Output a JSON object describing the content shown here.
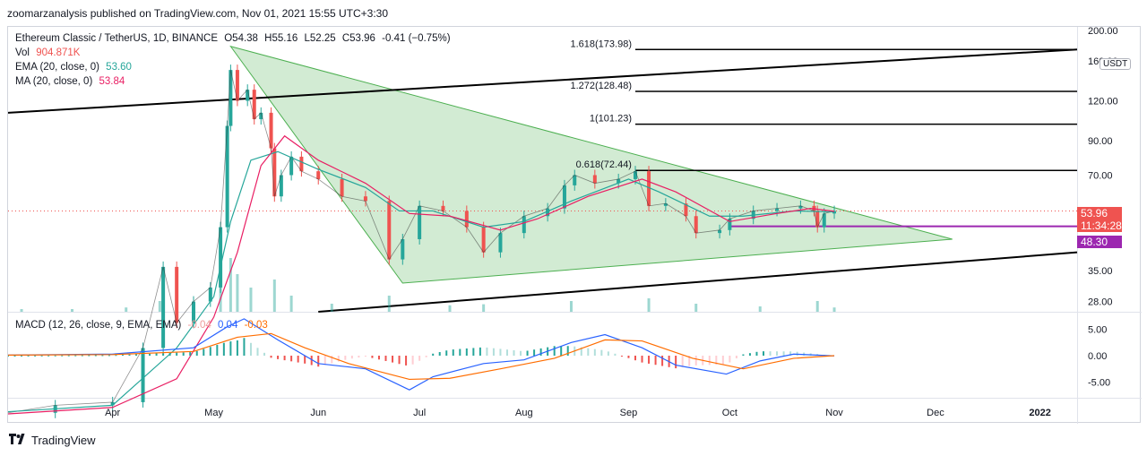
{
  "header": {
    "published": "zoomarzanalysis published on TradingView.com, Nov 01, 2021 15:55 UTC+3:30"
  },
  "legend": {
    "symbol": "Ethereum Classic / TetherUS, 1D, BINANCE",
    "ohlc": {
      "o": "O54.38",
      "h": "H55.16",
      "l": "L52.25",
      "c": "C53.96",
      "chg": "-0.41 (−0.75%)"
    },
    "vol": {
      "label": "Vol",
      "value": "904.871K"
    },
    "ema": {
      "label": "EMA (20, close, 0)",
      "value": "53.60"
    },
    "ma": {
      "label": "MA (20, close, 0)",
      "value": "53.84"
    },
    "macd": {
      "label": "MACD (12, 26, close, 9, EMA, EMA)",
      "v1": "-0.04",
      "v2": "0.04",
      "v3": "-0.03"
    }
  },
  "axis": {
    "currency": "USDT",
    "price_ticks": [
      "200.00",
      "160.00",
      "120.00",
      "90.00",
      "70.00",
      "35.00",
      "28.00"
    ],
    "macd_ticks": [
      "5.00",
      "0.00",
      "-5.00"
    ],
    "time_ticks": [
      "Apr",
      "May",
      "Jun",
      "Jul",
      "Aug",
      "Sep",
      "Oct",
      "Nov",
      "Dec",
      "2022"
    ]
  },
  "price_tags": {
    "last": "53.96",
    "countdown": "11:34:28",
    "level": "48.30"
  },
  "fib_levels": [
    {
      "label": "1.618(173.98)",
      "price": 173.98
    },
    {
      "label": "1.272(128.48)",
      "price": 128.48
    },
    {
      "label": "1(101.23)",
      "price": 101.23
    },
    {
      "label": "0.618(72.44)",
      "price": 72.44
    }
  ],
  "colors": {
    "up": "#26a69a",
    "down": "#ef5350",
    "ema": "#26a69a",
    "ma": "#e91e63",
    "macd": "#2962ff",
    "signal": "#ff6d00",
    "triangle": "#4caf50",
    "level": "#9c27b0",
    "last_tag": "#ef5350",
    "level_tag": "#9c27b0"
  },
  "footer": {
    "brand": "TradingView"
  },
  "chart_data": {
    "type": "candlestick",
    "title": "Ethereum Classic / TetherUS, 1D, BINANCE",
    "scale": "log",
    "ylim": [
      26,
      205
    ],
    "macd_ylim": [
      -8,
      8
    ],
    "x_range": [
      "2021-03-01",
      "2022-01-12"
    ],
    "x_ticks": [
      {
        "label": "Apr",
        "date": "2021-04-01"
      },
      {
        "label": "May",
        "date": "2021-05-01"
      },
      {
        "label": "Jun",
        "date": "2021-06-01"
      },
      {
        "label": "Jul",
        "date": "2021-07-01"
      },
      {
        "label": "Aug",
        "date": "2021-08-01"
      },
      {
        "label": "Sep",
        "date": "2021-09-01"
      },
      {
        "label": "Oct",
        "date": "2021-10-01"
      },
      {
        "label": "Nov",
        "date": "2021-11-01"
      },
      {
        "label": "Dec",
        "date": "2021-12-01"
      },
      {
        "label": "2022",
        "date": "2022-01-01"
      }
    ],
    "close_series": {
      "name": "close",
      "points": [
        [
          "2021-03-01",
          12.5
        ],
        [
          "2021-03-15",
          13.2
        ],
        [
          "2021-04-01",
          13.5
        ],
        [
          "2021-04-10",
          20.0
        ],
        [
          "2021-04-16",
          36.0
        ],
        [
          "2021-04-20",
          24.0
        ],
        [
          "2021-04-25",
          28.0
        ],
        [
          "2021-04-30",
          31.0
        ],
        [
          "2021-05-03",
          48.0
        ],
        [
          "2021-05-05",
          100.0
        ],
        [
          "2021-05-06",
          150.0
        ],
        [
          "2021-05-08",
          120.0
        ],
        [
          "2021-05-11",
          130.0
        ],
        [
          "2021-05-13",
          105.0
        ],
        [
          "2021-05-15",
          110.0
        ],
        [
          "2021-05-18",
          85.0
        ],
        [
          "2021-05-19",
          60.0
        ],
        [
          "2021-05-21",
          70.0
        ],
        [
          "2021-05-24",
          80.0
        ],
        [
          "2021-05-27",
          72.0
        ],
        [
          "2021-06-01",
          68.0
        ],
        [
          "2021-06-08",
          60.0
        ],
        [
          "2021-06-15",
          58.0
        ],
        [
          "2021-06-22",
          38.0
        ],
        [
          "2021-06-26",
          44.0
        ],
        [
          "2021-07-01",
          56.0
        ],
        [
          "2021-07-08",
          54.0
        ],
        [
          "2021-07-15",
          48.0
        ],
        [
          "2021-07-20",
          40.0
        ],
        [
          "2021-07-25",
          46.0
        ],
        [
          "2021-08-01",
          52.0
        ],
        [
          "2021-08-08",
          55.0
        ],
        [
          "2021-08-13",
          65.0
        ],
        [
          "2021-08-16",
          70.0
        ],
        [
          "2021-08-22",
          66.0
        ],
        [
          "2021-08-29",
          68.0
        ],
        [
          "2021-09-03",
          72.0
        ],
        [
          "2021-09-07",
          56.0
        ],
        [
          "2021-09-12",
          57.0
        ],
        [
          "2021-09-18",
          52.0
        ],
        [
          "2021-09-21",
          46.0
        ],
        [
          "2021-09-28",
          47.0
        ],
        [
          "2021-10-01",
          51.0
        ],
        [
          "2021-10-08",
          54.0
        ],
        [
          "2021-10-15",
          55.0
        ],
        [
          "2021-10-22",
          56.0
        ],
        [
          "2021-10-26",
          54.0
        ],
        [
          "2021-10-27",
          48.0
        ],
        [
          "2021-10-29",
          53.0
        ],
        [
          "2021-11-01",
          53.96
        ]
      ]
    },
    "ema": {
      "name": "EMA (20, close, 0)",
      "points": [
        [
          "2021-03-01",
          12.6
        ],
        [
          "2021-04-01",
          13.2
        ],
        [
          "2021-04-20",
          20.0
        ],
        [
          "2021-05-01",
          29.0
        ],
        [
          "2021-05-06",
          50.0
        ],
        [
          "2021-05-12",
          78.0
        ],
        [
          "2021-05-20",
          83.0
        ],
        [
          "2021-06-01",
          73.0
        ],
        [
          "2021-06-15",
          64.0
        ],
        [
          "2021-06-25",
          54.0
        ],
        [
          "2021-07-05",
          54.0
        ],
        [
          "2021-07-20",
          48.0
        ],
        [
          "2021-08-01",
          50.0
        ],
        [
          "2021-08-15",
          58.0
        ],
        [
          "2021-09-01",
          68.0
        ],
        [
          "2021-09-10",
          62.0
        ],
        [
          "2021-09-25",
          52.0
        ],
        [
          "2021-10-05",
          52.0
        ],
        [
          "2021-10-20",
          54.0
        ],
        [
          "2021-11-01",
          53.6
        ]
      ]
    },
    "ma": {
      "name": "MA (20, close, 0)",
      "points": [
        [
          "2021-03-01",
          12.4
        ],
        [
          "2021-04-01",
          13.0
        ],
        [
          "2021-04-20",
          16.0
        ],
        [
          "2021-05-01",
          25.0
        ],
        [
          "2021-05-08",
          40.0
        ],
        [
          "2021-05-15",
          75.0
        ],
        [
          "2021-05-22",
          93.0
        ],
        [
          "2021-06-01",
          78.0
        ],
        [
          "2021-06-15",
          66.0
        ],
        [
          "2021-06-28",
          53.0
        ],
        [
          "2021-07-10",
          52.0
        ],
        [
          "2021-07-25",
          47.0
        ],
        [
          "2021-08-05",
          51.0
        ],
        [
          "2021-08-20",
          60.0
        ],
        [
          "2021-09-05",
          68.0
        ],
        [
          "2021-09-15",
          62.0
        ],
        [
          "2021-10-01",
          50.0
        ],
        [
          "2021-10-15",
          53.0
        ],
        [
          "2021-10-25",
          55.0
        ],
        [
          "2021-11-01",
          53.84
        ]
      ]
    },
    "volume": {
      "unit": "relative (0–1)",
      "points": [
        [
          "2021-03-05",
          0.05
        ],
        [
          "2021-03-20",
          0.05
        ],
        [
          "2021-04-05",
          0.08
        ],
        [
          "2021-04-15",
          0.2
        ],
        [
          "2021-04-25",
          0.15
        ],
        [
          "2021-05-03",
          0.5
        ],
        [
          "2021-05-06",
          1.0
        ],
        [
          "2021-05-08",
          0.7
        ],
        [
          "2021-05-12",
          0.45
        ],
        [
          "2021-05-19",
          0.6
        ],
        [
          "2021-05-24",
          0.3
        ],
        [
          "2021-06-05",
          0.15
        ],
        [
          "2021-06-22",
          0.3
        ],
        [
          "2021-07-10",
          0.12
        ],
        [
          "2021-07-20",
          0.14
        ],
        [
          "2021-08-15",
          0.2
        ],
        [
          "2021-09-07",
          0.25
        ],
        [
          "2021-09-21",
          0.15
        ],
        [
          "2021-10-10",
          0.1
        ],
        [
          "2021-10-27",
          0.2
        ],
        [
          "2021-11-01",
          0.08
        ]
      ]
    },
    "macd": {
      "name": "MACD (12, 26, close, 9, EMA, EMA)",
      "points": [
        [
          "2021-03-01",
          0.1
        ],
        [
          "2021-04-01",
          0.3
        ],
        [
          "2021-04-25",
          1.5
        ],
        [
          "2021-05-05",
          5.5
        ],
        [
          "2021-05-10",
          7.0
        ],
        [
          "2021-05-20",
          3.0
        ],
        [
          "2021-06-01",
          -1.5
        ],
        [
          "2021-06-15",
          -2.5
        ],
        [
          "2021-06-28",
          -6.5
        ],
        [
          "2021-07-05",
          -4.0
        ],
        [
          "2021-07-20",
          -1.5
        ],
        [
          "2021-08-01",
          -0.8
        ],
        [
          "2021-08-15",
          2.5
        ],
        [
          "2021-08-25",
          4.0
        ],
        [
          "2021-09-05",
          1.5
        ],
        [
          "2021-09-15",
          -1.8
        ],
        [
          "2021-09-30",
          -3.5
        ],
        [
          "2021-10-10",
          -1.0
        ],
        [
          "2021-10-20",
          0.3
        ],
        [
          "2021-11-01",
          -0.04
        ]
      ]
    },
    "signal": {
      "name": "signal",
      "points": [
        [
          "2021-03-01",
          0.1
        ],
        [
          "2021-04-01",
          0.2
        ],
        [
          "2021-04-25",
          0.8
        ],
        [
          "2021-05-08",
          3.5
        ],
        [
          "2021-05-18",
          4.2
        ],
        [
          "2021-05-28",
          1.5
        ],
        [
          "2021-06-10",
          -1.5
        ],
        [
          "2021-06-28",
          -4.5
        ],
        [
          "2021-07-10",
          -4.3
        ],
        [
          "2021-07-25",
          -2.5
        ],
        [
          "2021-08-10",
          -0.5
        ],
        [
          "2021-08-25",
          3.0
        ],
        [
          "2021-09-05",
          2.8
        ],
        [
          "2021-09-20",
          -0.5
        ],
        [
          "2021-10-05",
          -2.5
        ],
        [
          "2021-10-20",
          -0.5
        ],
        [
          "2021-11-01",
          0.0
        ]
      ]
    },
    "drawings": {
      "triangle": [
        [
          "2021-05-06",
          178
        ],
        [
          "2021-06-26",
          32
        ],
        [
          "2021-12-06",
          44
        ]
      ],
      "upper_trendline": [
        [
          "2021-03-01",
          110
        ],
        [
          "2022-01-12",
          174
        ]
      ],
      "lower_trendline": [
        [
          "2021-06-01",
          26
        ],
        [
          "2022-01-12",
          40
        ]
      ],
      "horizontal_level": {
        "price": 48.3,
        "from": "2021-10-01"
      },
      "fib_start": "2021-09-03"
    }
  }
}
